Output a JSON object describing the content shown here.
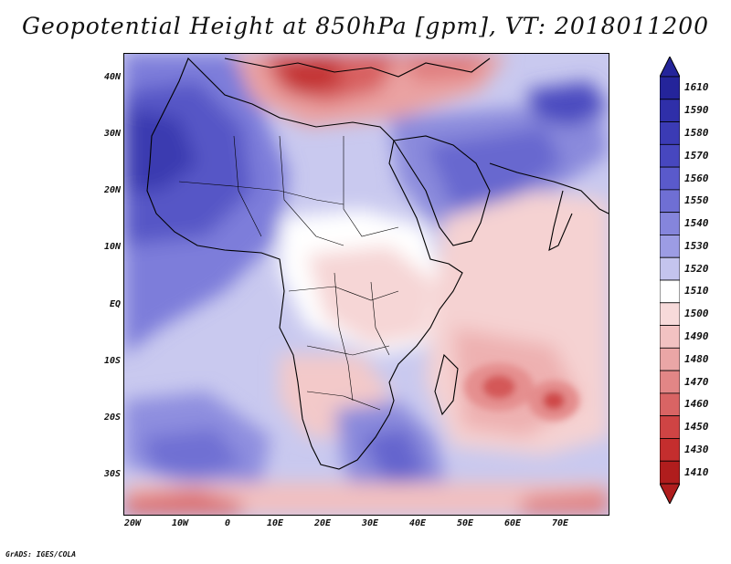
{
  "title": "Geopotential Height at 850hPa [gpm], VT: 2018011200",
  "credit": "GrADS: IGES/COLA",
  "latitude_labels": [
    "40N",
    "30N",
    "20N",
    "10N",
    "EQ",
    "10S",
    "20S",
    "30S"
  ],
  "longitude_labels": [
    "20W",
    "10W",
    "0",
    "10E",
    "20E",
    "30E",
    "40E",
    "50E",
    "60E",
    "70E"
  ],
  "colorbar": {
    "levels": [
      "1610",
      "1590",
      "1580",
      "1570",
      "1560",
      "1550",
      "1540",
      "1530",
      "1520",
      "1510",
      "1500",
      "1490",
      "1480",
      "1470",
      "1460",
      "1450",
      "1430",
      "1410"
    ],
    "colors": [
      "#24249a",
      "#2f2fa9",
      "#3b3bb5",
      "#4747bf",
      "#5a5acb",
      "#6f6fd4",
      "#8585dc",
      "#9c9ce4",
      "#c4c4ee",
      "#ffffff",
      "#f7dada",
      "#f2c2c2",
      "#eaa6a6",
      "#e28686",
      "#d96464",
      "#cf4444",
      "#c42e2e",
      "#b01d1d"
    ]
  }
}
